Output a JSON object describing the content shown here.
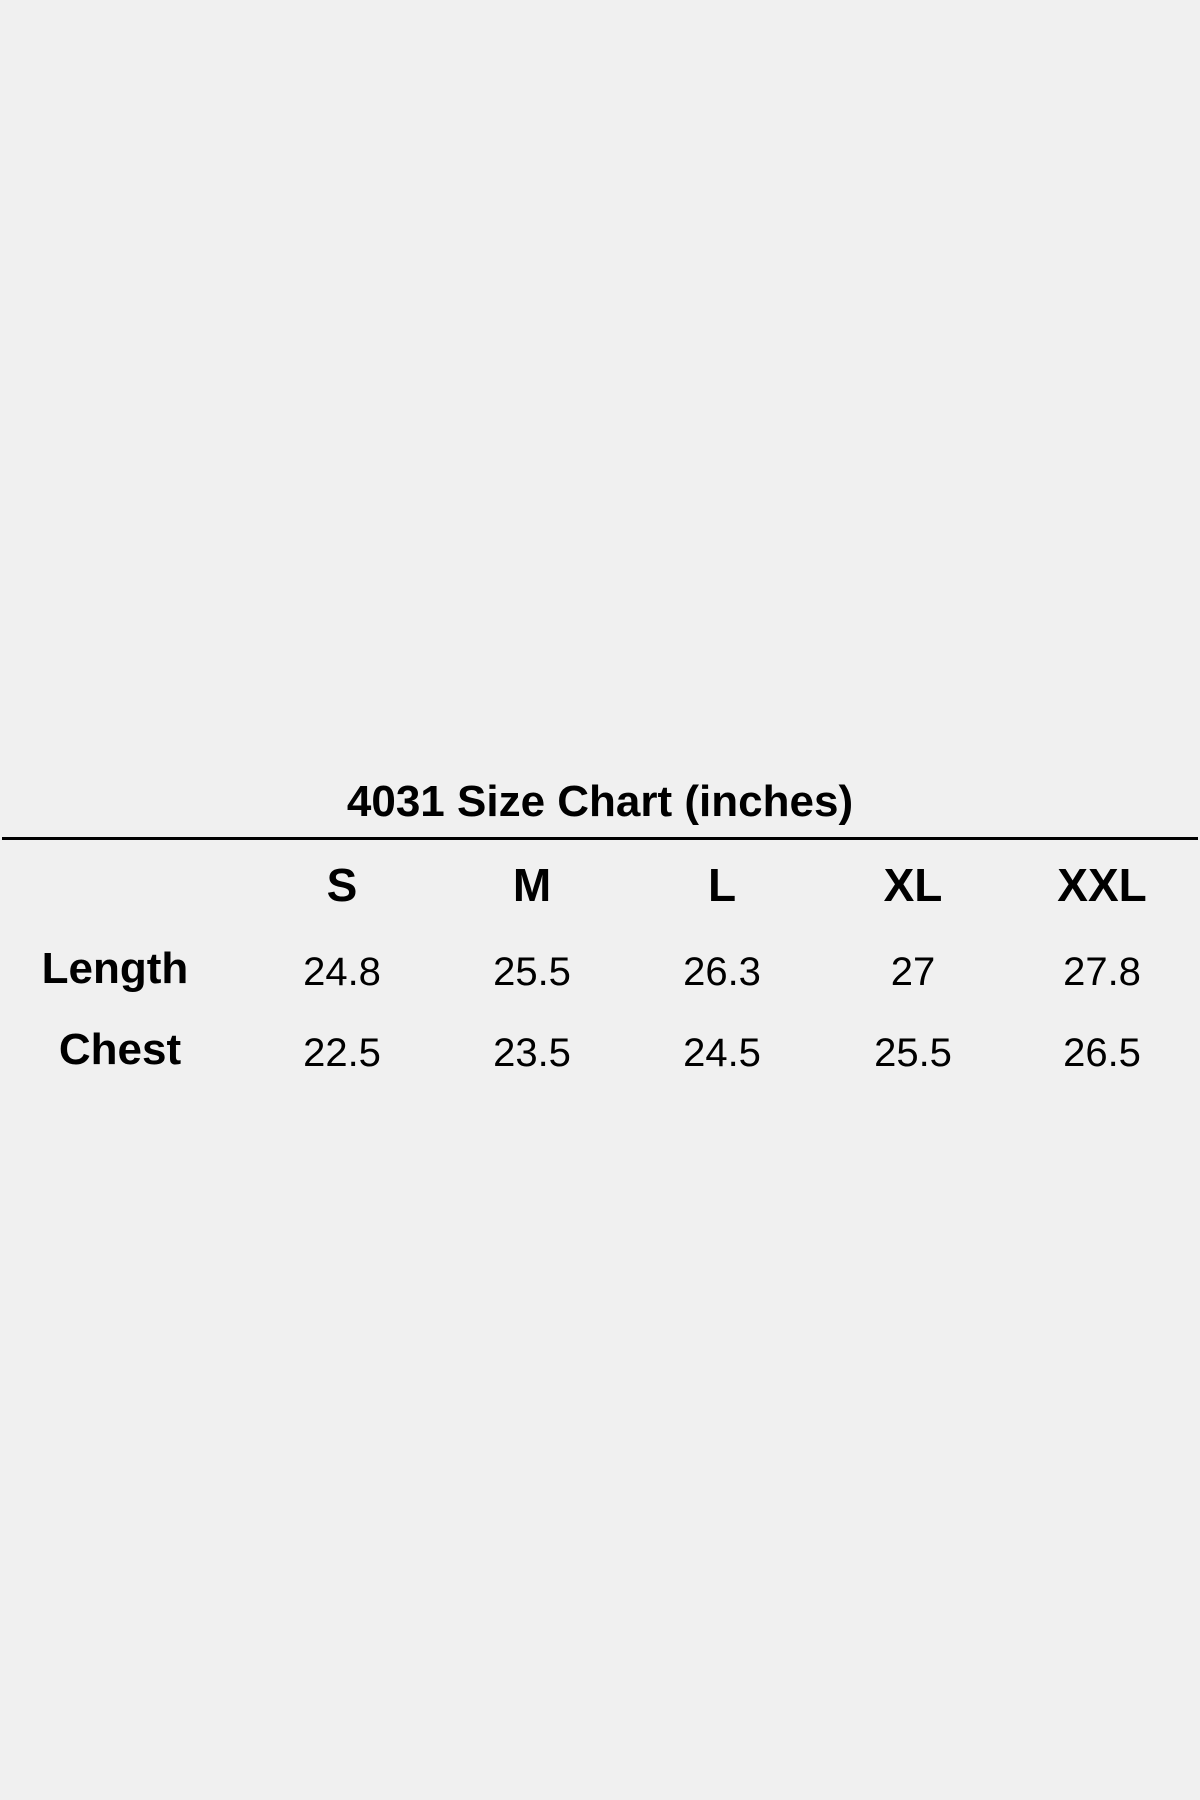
{
  "title": "4031 Size Chart (inches)",
  "table": {
    "columns": [
      "S",
      "M",
      "L",
      "XL",
      "XXL"
    ],
    "rows": [
      {
        "label": "Length",
        "values": [
          "24.8",
          "25.5",
          "26.3",
          "27",
          "27.8"
        ]
      },
      {
        "label": "Chest",
        "values": [
          "22.5",
          "23.5",
          "24.5",
          "25.5",
          "26.5"
        ]
      }
    ]
  }
}
